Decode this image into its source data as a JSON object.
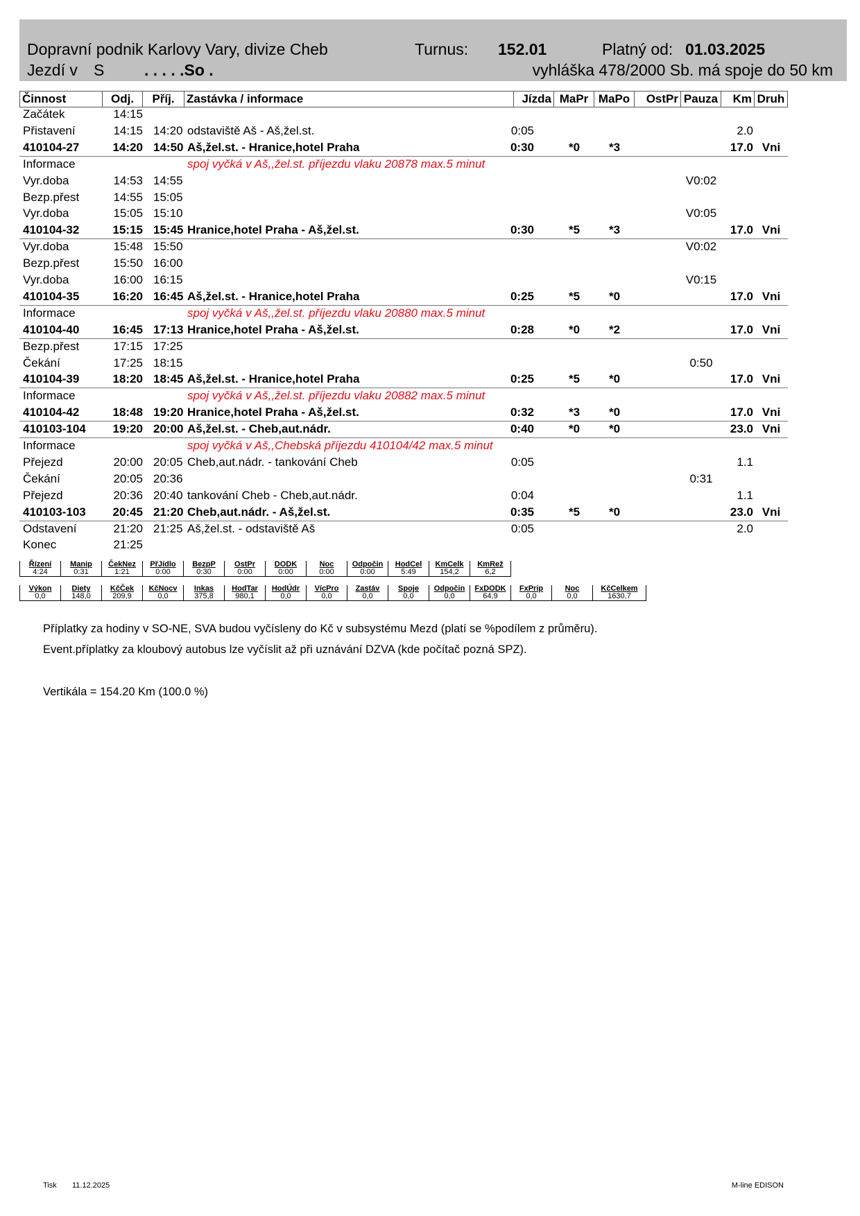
{
  "header": {
    "company": "Dopravní podnik Karlovy Vary, divize Cheb",
    "turnus_label": "Turnus:",
    "turnus_value": "152.01",
    "valid_label": "Platný od:",
    "valid_value": "01.03.2025",
    "jezdi_label": "Jezdí v",
    "jezdi_code": "S",
    "jezdi_days": ". . . . .So .",
    "decree": "vyhláška 478/2000 Sb. má spoje do 50 km"
  },
  "columns": [
    "Činnost",
    "Odj.",
    "Příj.",
    "Zastávka / informace",
    "Jízda",
    "MaPr",
    "MaPo",
    "OstPr",
    "Pauza",
    "Km",
    "Druh"
  ],
  "rows": [
    {
      "cinnost": "Začátek",
      "odj": "14:15"
    },
    {
      "cinnost": "Přistavení",
      "odj": "14:15",
      "prij": "14:20",
      "zastavka": "odstaviště Aš - Aš,žel.st.",
      "jizda": "0:05",
      "km": "2.0"
    },
    {
      "cinnost": "410104-27",
      "odj": "14:20",
      "prij": "14:50",
      "zastavka": "Aš,žel.st. - Hranice,hotel Praha",
      "jizda": "0:30",
      "mapr": "*0",
      "mapo": "*3",
      "km": "17.0",
      "druh": "Vni",
      "bold": true
    },
    {
      "cinnost": "Informace",
      "info": "spoj vyčká v Aš,,žel.st. příjezdu vlaku 20878 max.5 minut"
    },
    {
      "cinnost": "Vyr.doba",
      "odj": "14:53",
      "prij": "14:55",
      "pauza": "V0:02"
    },
    {
      "cinnost": "Bezp.přest",
      "odj": "14:55",
      "prij": "15:05"
    },
    {
      "cinnost": "Vyr.doba",
      "odj": "15:05",
      "prij": "15:10",
      "pauza": "V0:05"
    },
    {
      "cinnost": "410104-32",
      "odj": "15:15",
      "prij": "15:45",
      "zastavka": "Hranice,hotel Praha - Aš,žel.st.",
      "jizda": "0:30",
      "mapr": "*5",
      "mapo": "*3",
      "km": "17.0",
      "druh": "Vni",
      "bold": true
    },
    {
      "cinnost": "Vyr.doba",
      "odj": "15:48",
      "prij": "15:50",
      "pauza": "V0:02"
    },
    {
      "cinnost": "Bezp.přest",
      "odj": "15:50",
      "prij": "16:00"
    },
    {
      "cinnost": "Vyr.doba",
      "odj": "16:00",
      "prij": "16:15",
      "pauza": "V0:15"
    },
    {
      "cinnost": "410104-35",
      "odj": "16:20",
      "prij": "16:45",
      "zastavka": "Aš,žel.st. - Hranice,hotel Praha",
      "jizda": "0:25",
      "mapr": "*5",
      "mapo": "*0",
      "km": "17.0",
      "druh": "Vni",
      "bold": true
    },
    {
      "cinnost": "Informace",
      "info": "spoj vyčká v Aš,,žel.st. příjezdu vlaku 20880 max.5 minut"
    },
    {
      "cinnost": "410104-40",
      "odj": "16:45",
      "prij": "17:13",
      "zastavka": "Hranice,hotel Praha - Aš,žel.st.",
      "jizda": "0:28",
      "mapr": "*0",
      "mapo": "*2",
      "km": "17.0",
      "druh": "Vni",
      "bold": true
    },
    {
      "cinnost": "Bezp.přest",
      "odj": "17:15",
      "prij": "17:25"
    },
    {
      "cinnost": "Čekání",
      "odj": "17:25",
      "prij": "18:15",
      "pauza": "0:50"
    },
    {
      "cinnost": "410104-39",
      "odj": "18:20",
      "prij": "18:45",
      "zastavka": "Aš,žel.st. - Hranice,hotel Praha",
      "jizda": "0:25",
      "mapr": "*5",
      "mapo": "*0",
      "km": "17.0",
      "druh": "Vni",
      "bold": true
    },
    {
      "cinnost": "Informace",
      "info": "spoj vyčká v Aš,,žel.st. příjezdu vlaku 20882 max.5 minut"
    },
    {
      "cinnost": "410104-42",
      "odj": "18:48",
      "prij": "19:20",
      "zastavka": "Hranice,hotel Praha - Aš,žel.st.",
      "jizda": "0:32",
      "mapr": "*3",
      "mapo": "*0",
      "km": "17.0",
      "druh": "Vni",
      "bold": true
    },
    {
      "cinnost": "410103-104",
      "odj": "19:20",
      "prij": "20:00",
      "zastavka": "Aš,žel.st. - Cheb,aut.nádr.",
      "jizda": "0:40",
      "mapr": "*0",
      "mapo": "*0",
      "km": "23.0",
      "druh": "Vni",
      "bold": true
    },
    {
      "cinnost": "Informace",
      "info": "spoj vyčká v Aš,,Chebská příjezdu  410104/42 max.5 minut"
    },
    {
      "cinnost": "Přejezd",
      "odj": "20:00",
      "prij": "20:05",
      "zastavka": "Cheb,aut.nádr. - tankování Cheb",
      "jizda": "0:05",
      "km": "1.1"
    },
    {
      "cinnost": "Čekání",
      "odj": "20:05",
      "prij": "20:36",
      "pauza": "0:31"
    },
    {
      "cinnost": "Přejezd",
      "odj": "20:36",
      "prij": "20:40",
      "zastavka": "tankování Cheb - Cheb,aut.nádr.",
      "jizda": "0:04",
      "km": "1.1"
    },
    {
      "cinnost": "410103-103",
      "odj": "20:45",
      "prij": "21:20",
      "zastavka": "Cheb,aut.nádr. - Aš,žel.st.",
      "jizda": "0:35",
      "mapr": "*5",
      "mapo": "*0",
      "km": "23.0",
      "druh": "Vni",
      "bold": true
    },
    {
      "cinnost": "Odstavení",
      "odj": "21:20",
      "prij": "21:25",
      "zastavka": "Aš,žel.st. - odstaviště Aš",
      "jizda": "0:05",
      "km": "2.0"
    },
    {
      "cinnost": "Konec",
      "odj": "21:25"
    }
  ],
  "summary1": {
    "labels": [
      "Řízení",
      "Manip",
      "ČekNez",
      "PřJídlo",
      "BezpP",
      "OstPr",
      "DODK",
      "Noc",
      "Odpočin",
      "HodCel",
      "KmCelk",
      "KmRež"
    ],
    "values": [
      "4:24",
      "0:31",
      "1:21",
      "0:00",
      "0:30",
      "0:00",
      "0:00",
      "0:00",
      "0:00",
      "5:49",
      "154,2",
      "6,2"
    ]
  },
  "summary2": {
    "labels": [
      "Výkon",
      "Diety",
      "KčČek",
      "KčNocv",
      "Inkas",
      "HodTar",
      "HodÚdr",
      "VícPro",
      "Zastáv",
      "Spoje",
      "Odpočin",
      "FxDODK",
      "FxPrip",
      "Noc",
      "KčCelkem"
    ],
    "values": [
      "0,0",
      "148,0",
      "209,9",
      "0,0",
      "375,8",
      "980,1",
      "0,0",
      "0,0",
      "0,0",
      "0,0",
      "0,0",
      "64,9",
      "0,0",
      "0,0",
      "1630,7"
    ]
  },
  "notes": [
    "Příplatky za hodiny v SO-NE, SVA budou vyčísleny do Kč v subsystému Mezd (platí se %podílem z průměru).",
    "Event.příplatky za kloubový autobus lze vyčíslit až při uznávání DZVA (kde počítač pozná SPZ).",
    "Vertikála = 154.20 Km (100.0 %)"
  ],
  "footer": {
    "print_label": "Tisk",
    "print_date": "11.12.2025",
    "software": "M-line EDISON"
  },
  "colors": {
    "header_bg": "#c0c0c0",
    "info_text": "#e0101a"
  }
}
